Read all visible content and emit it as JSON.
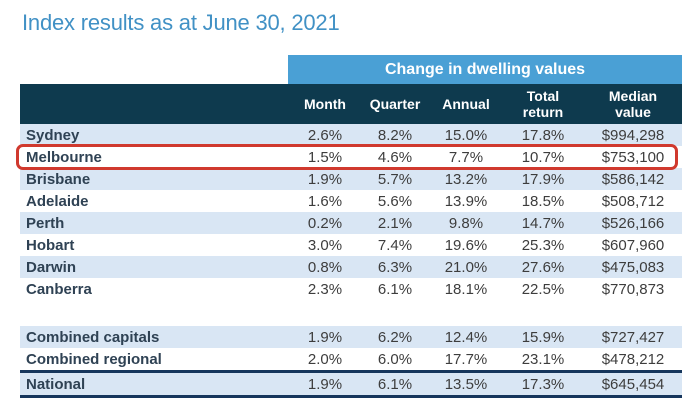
{
  "page_title": "Index results as at June 30, 2021",
  "colors": {
    "title_blue": "#4191C5",
    "banner_blue": "#4AA0D5",
    "header_teal": "#0E3A4E",
    "stripe_blue": "#D9E6F4",
    "label_text": "#2F4254",
    "number_text": "#3D3D3D",
    "highlight_red": "#D0392E",
    "rule_navy": "#16365C"
  },
  "chart_data": {
    "type": "table",
    "title": "Index results as at June 30, 2021",
    "group_header": "Change in dwelling values",
    "columns": [
      "Month",
      "Quarter",
      "Annual",
      "Total\nreturn",
      "Median\nvalue"
    ],
    "rows": [
      {
        "label": "Sydney",
        "values": [
          "2.6%",
          "8.2%",
          "15.0%",
          "17.8%",
          "$994,298"
        ],
        "striped": true
      },
      {
        "label": "Melbourne",
        "values": [
          "1.5%",
          "4.6%",
          "7.7%",
          "10.7%",
          "$753,100"
        ],
        "highlighted": true
      },
      {
        "label": "Brisbane",
        "values": [
          "1.9%",
          "5.7%",
          "13.2%",
          "17.9%",
          "$586,142"
        ],
        "striped": true
      },
      {
        "label": "Adelaide",
        "values": [
          "1.6%",
          "5.6%",
          "13.9%",
          "18.5%",
          "$508,712"
        ]
      },
      {
        "label": "Perth",
        "values": [
          "0.2%",
          "2.1%",
          "9.8%",
          "14.7%",
          "$526,166"
        ],
        "striped": true
      },
      {
        "label": "Hobart",
        "values": [
          "3.0%",
          "7.4%",
          "19.6%",
          "25.3%",
          "$607,960"
        ]
      },
      {
        "label": "Darwin",
        "values": [
          "0.8%",
          "6.3%",
          "21.0%",
          "27.6%",
          "$475,083"
        ],
        "striped": true
      },
      {
        "label": "Canberra",
        "values": [
          "2.3%",
          "6.1%",
          "18.1%",
          "22.5%",
          "$770,873"
        ]
      },
      {
        "label": "Combined capitals",
        "values": [
          "1.9%",
          "6.2%",
          "12.4%",
          "15.9%",
          "$727,427"
        ],
        "striped": true,
        "gap_before": true
      },
      {
        "label": "Combined regional",
        "values": [
          "2.0%",
          "6.0%",
          "17.7%",
          "23.1%",
          "$478,212"
        ]
      },
      {
        "label": "National",
        "values": [
          "1.9%",
          "6.1%",
          "13.5%",
          "17.3%",
          "$645,454"
        ],
        "striped": true,
        "rule_before": true,
        "rule_after": true
      }
    ],
    "highlighted_row": "Melbourne",
    "layout": {
      "legend_position": "none",
      "grid": "row-stripes"
    }
  }
}
